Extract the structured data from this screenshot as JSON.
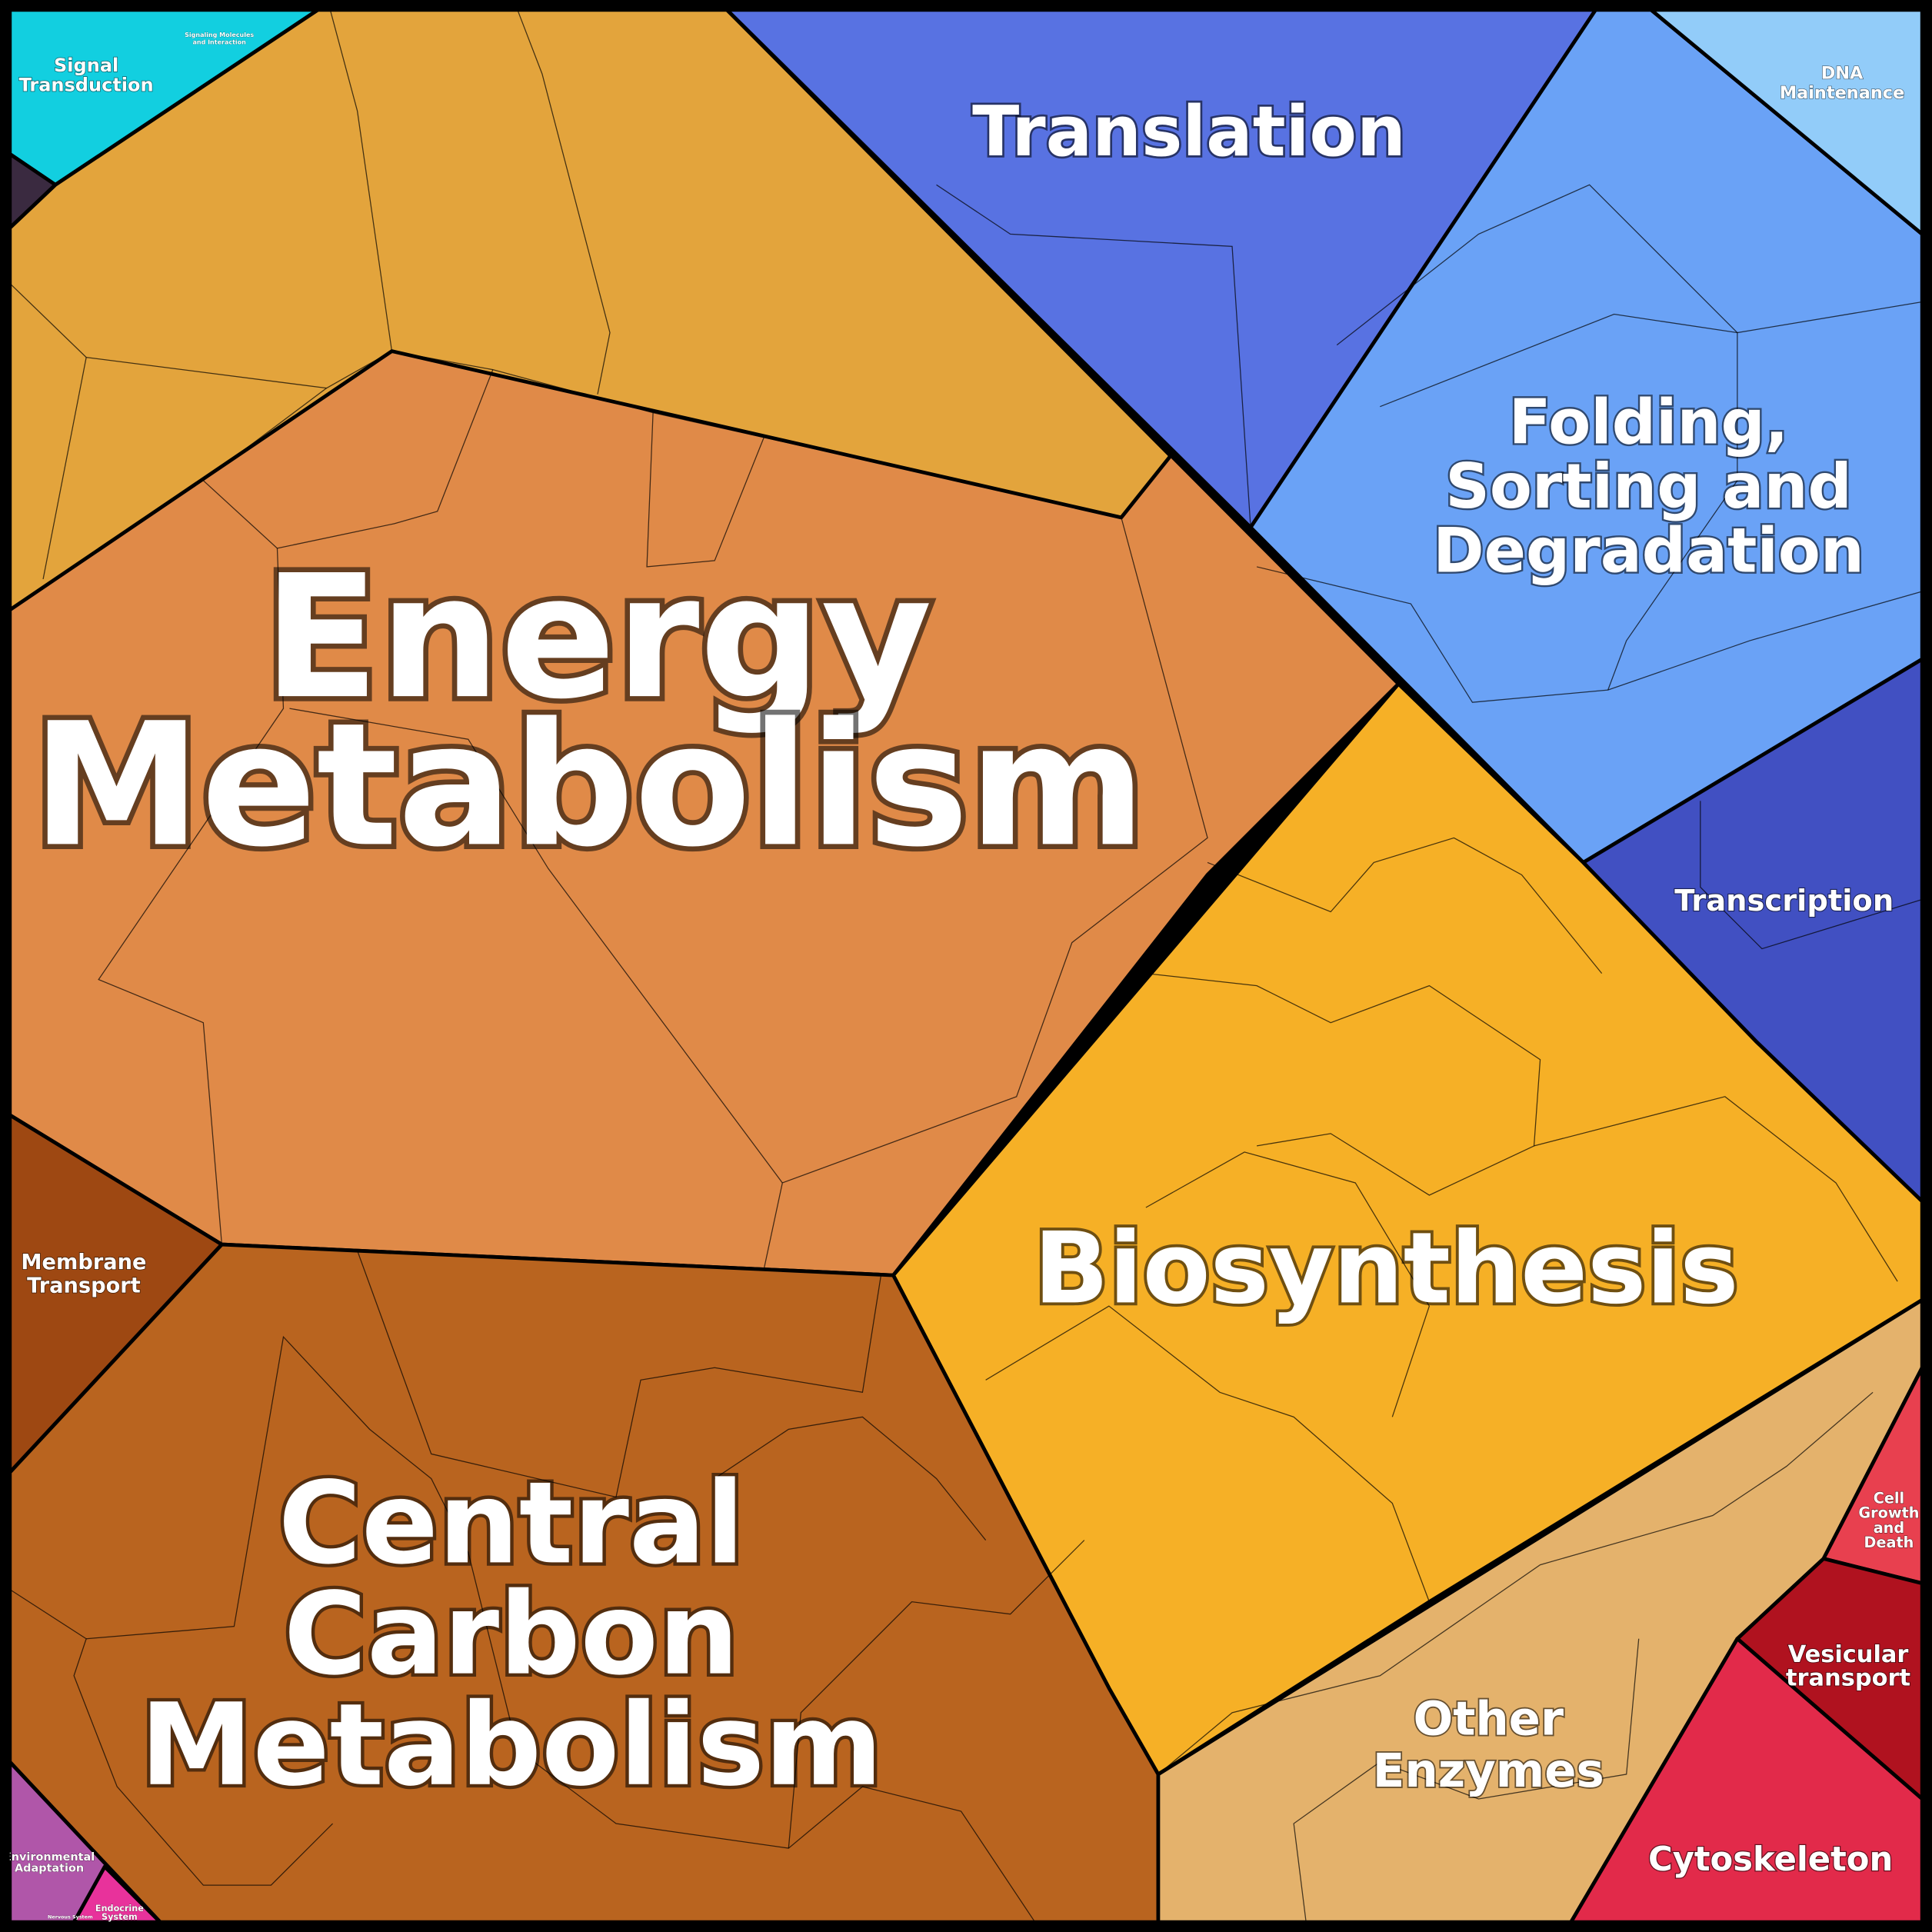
{
  "labels": [
    {
      "lines": [
        "Signal",
        "Transduction"
      ]
    },
    {
      "lines": [
        "Signaling Molecules",
        "and Interaction"
      ]
    },
    {
      "lines": [
        "Translation"
      ]
    },
    {
      "lines": [
        "DNA",
        "Maintenance"
      ]
    },
    {
      "lines": [
        "Folding,",
        "Sorting and",
        "Degradation"
      ]
    },
    {
      "lines": [
        "Energy",
        "Metabolism"
      ]
    },
    {
      "lines": [
        "Transcription"
      ]
    },
    {
      "lines": [
        "Membrane",
        "Transport"
      ]
    },
    {
      "lines": [
        "Biosynthesis"
      ]
    },
    {
      "lines": [
        "Cell",
        "Growth",
        "and",
        "Death"
      ]
    },
    {
      "lines": [
        "Vesicular",
        "transport"
      ]
    },
    {
      "lines": [
        "Central",
        "Carbon",
        "Metabolism"
      ]
    },
    {
      "lines": [
        "Other",
        "Enzymes"
      ]
    },
    {
      "lines": [
        "Cytoskeleton"
      ]
    },
    {
      "lines": [
        "Environmental",
        "Adaptation"
      ]
    },
    {
      "lines": [
        "Nervous System"
      ]
    },
    {
      "lines": [
        "Endocrine",
        "System"
      ]
    }
  ]
}
